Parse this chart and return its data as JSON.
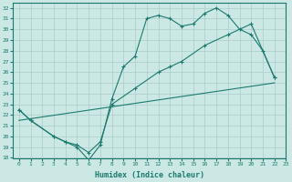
{
  "xlabel": "Humidex (Indice chaleur)",
  "xlim": [
    -0.5,
    23
  ],
  "ylim": [
    18,
    32.5
  ],
  "xticks": [
    0,
    1,
    2,
    3,
    4,
    5,
    6,
    7,
    8,
    9,
    10,
    11,
    12,
    13,
    14,
    15,
    16,
    17,
    18,
    19,
    20,
    21,
    22,
    23
  ],
  "yticks": [
    18,
    19,
    20,
    21,
    22,
    23,
    24,
    25,
    26,
    27,
    28,
    29,
    30,
    31,
    32
  ],
  "bg_color": "#cce8e5",
  "grid_color": "#aacccc",
  "line_color": "#1a7a6e",
  "line1_x": [
    0,
    1,
    3,
    4,
    5,
    6,
    7,
    8,
    9,
    10,
    11,
    12,
    13,
    14,
    15,
    16,
    17,
    18,
    19,
    20,
    21,
    22
  ],
  "line1_y": [
    22.5,
    21.5,
    20,
    19.5,
    19,
    17.8,
    19.2,
    23.5,
    26.5,
    27.5,
    31,
    31.3,
    31,
    30.3,
    30.5,
    31.5,
    32,
    31.3,
    30,
    29.5,
    28,
    25.5
  ],
  "line2_x": [
    0,
    1,
    3,
    4,
    5,
    6,
    7,
    8,
    10,
    12,
    13,
    14,
    16,
    18,
    20,
    22
  ],
  "line2_y": [
    22.5,
    21.5,
    20,
    19.5,
    19.2,
    18.5,
    19.5,
    23,
    24.5,
    26,
    26.5,
    27,
    28.5,
    29.5,
    30.5,
    25.5
  ],
  "line3_x": [
    0,
    22
  ],
  "line3_y": [
    21.5,
    25.0
  ]
}
